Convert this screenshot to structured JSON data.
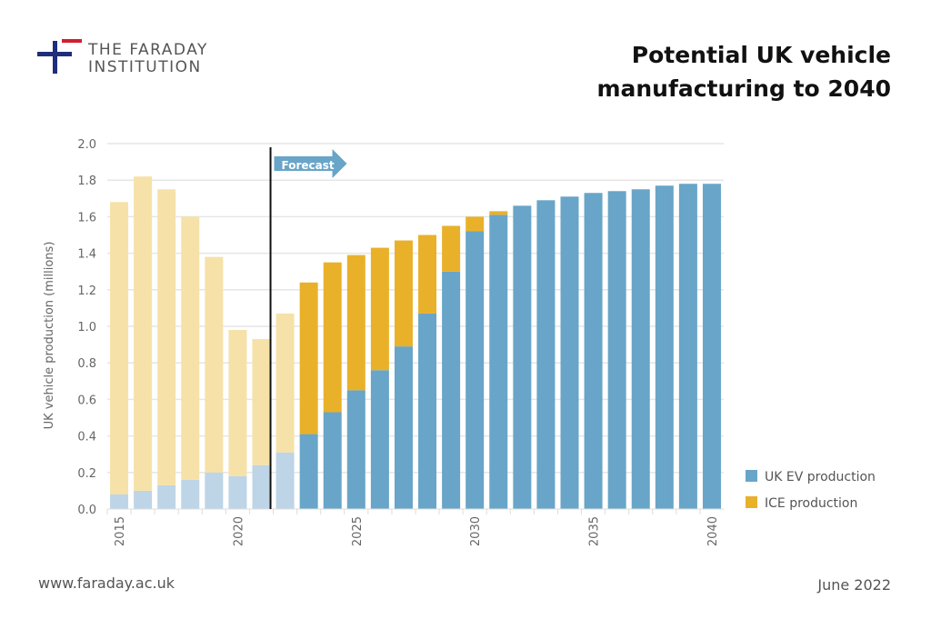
{
  "brand": {
    "name_line1": "THE FARADAY",
    "name_line2": "INSTITUTION",
    "colors": {
      "navy": "#1f2d7a",
      "red": "#d0202e"
    }
  },
  "title_line1": "Potential UK vehicle",
  "title_line2": "manufacturing to 2040",
  "footer": {
    "url": "www.faraday.ac.uk",
    "date": "June 2022"
  },
  "chart_data": {
    "type": "bar",
    "stacked": true,
    "title": "Potential UK vehicle manufacturing to 2040",
    "xlabel": "",
    "ylabel": "UK vehicle production  (millions)",
    "ylim": [
      0,
      2.0
    ],
    "yticks": [
      "0.0",
      "0.2",
      "0.4",
      "0.6",
      "0.8",
      "1.0",
      "1.2",
      "1.4",
      "1.6",
      "1.8",
      "2.0"
    ],
    "xtick_labels": [
      "2015",
      "2020",
      "2025",
      "2030",
      "2035",
      "2040"
    ],
    "grid": true,
    "legend": "bottom-right",
    "annotation": "Forecast",
    "forecast_start": 2022,
    "categories": [
      2015,
      2016,
      2017,
      2018,
      2019,
      2020,
      2021,
      2022,
      2023,
      2024,
      2025,
      2026,
      2027,
      2028,
      2029,
      2030,
      2031,
      2032,
      2033,
      2034,
      2035,
      2036,
      2037,
      2038,
      2039,
      2040
    ],
    "series": [
      {
        "name": "UK EV production",
        "color": "#68a5c8",
        "historic_color": "#bdd5e6",
        "values": [
          0.08,
          0.1,
          0.13,
          0.16,
          0.2,
          0.18,
          0.24,
          0.31,
          0.41,
          0.53,
          0.65,
          0.76,
          0.89,
          1.07,
          1.3,
          1.52,
          1.61,
          1.66,
          1.69,
          1.71,
          1.73,
          1.74,
          1.75,
          1.77,
          1.78,
          1.78
        ]
      },
      {
        "name": "ICE production",
        "color": "#e9b12a",
        "historic_color": "#f6e1a8",
        "values": [
          1.6,
          1.72,
          1.62,
          1.44,
          1.18,
          0.8,
          0.69,
          0.76,
          0.83,
          0.82,
          0.74,
          0.67,
          0.58,
          0.43,
          0.25,
          0.08,
          0.02,
          0,
          0,
          0,
          0,
          0,
          0,
          0,
          0,
          0
        ]
      }
    ]
  }
}
